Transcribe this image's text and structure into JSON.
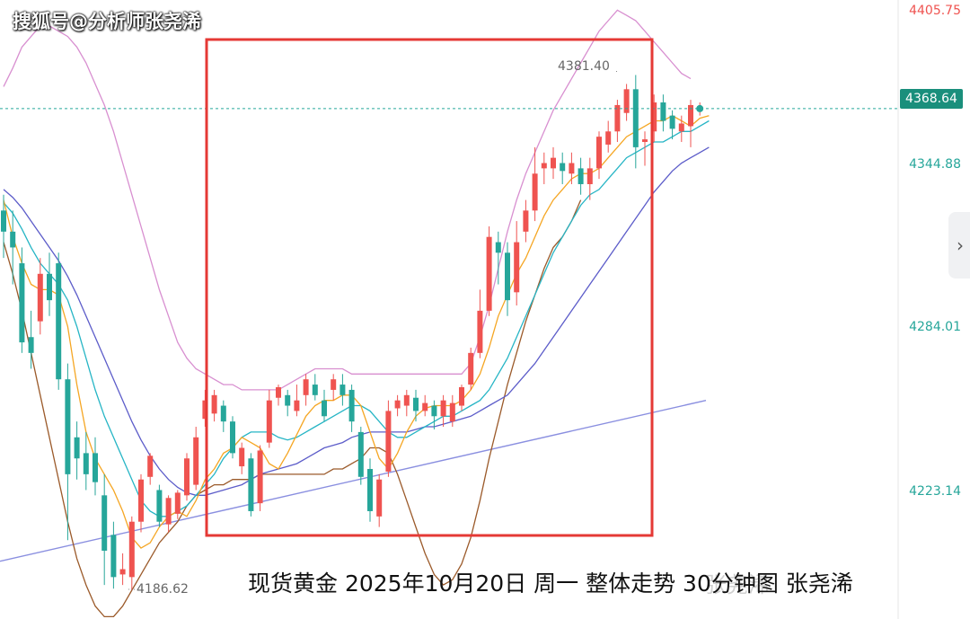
{
  "watermark": "搜狐号@分析师张尧浠",
  "caption": "现货黄金 2025年10月20日 周一 整体走势 30分钟图 张尧浠",
  "caption_ghost": "张尧浠",
  "colors": {
    "up": "#26a69a",
    "down": "#ef5350",
    "ma_fast": "#f5a623",
    "ma_mid": "#26b5c5",
    "ma_slow": "#5c5cc9",
    "boll": "#d88fd0",
    "lower_band": "#9b5a2a",
    "long_ma": "#8a8fe0",
    "box": "#e53935",
    "price_tag": "#1a8f7c"
  },
  "chart_data": {
    "type": "candlestick",
    "timeframe": "30分钟图",
    "instrument": "现货黄金",
    "y_axis": {
      "ticks": [
        "4405.75",
        "4344.88",
        "4284.01",
        "4223.14"
      ],
      "range": [
        4177,
        4410
      ]
    },
    "current_price": "4368.64",
    "annotations": {
      "high": "4381.40",
      "low": "4186.62"
    },
    "candles": [
      {
        "o": 4330,
        "c": 4322,
        "h": 4336,
        "l": 4312
      },
      {
        "o": 4322,
        "c": 4316,
        "h": 4330,
        "l": 4302
      },
      {
        "o": 4310,
        "c": 4280,
        "h": 4316,
        "l": 4276
      },
      {
        "o": 4282,
        "c": 4276,
        "h": 4292,
        "l": 4270
      },
      {
        "o": 4288,
        "c": 4306,
        "h": 4312,
        "l": 4283
      },
      {
        "o": 4306,
        "c": 4296,
        "h": 4314,
        "l": 4290
      },
      {
        "o": 4310,
        "c": 4266,
        "h": 4314,
        "l": 4262
      },
      {
        "o": 4266,
        "c": 4230,
        "h": 4272,
        "l": 4205
      },
      {
        "o": 4244,
        "c": 4236,
        "h": 4250,
        "l": 4228
      },
      {
        "o": 4238,
        "c": 4230,
        "h": 4246,
        "l": 4224
      },
      {
        "o": 4238,
        "c": 4227,
        "h": 4244,
        "l": 4222
      },
      {
        "o": 4222,
        "c": 4201,
        "h": 4230,
        "l": 4188
      },
      {
        "o": 4207,
        "c": 4191,
        "h": 4212,
        "l": 4186.62
      },
      {
        "o": 4192,
        "c": 4194,
        "h": 4200,
        "l": 4188
      },
      {
        "o": 4191,
        "c": 4212,
        "h": 4214,
        "l": 4186
      },
      {
        "o": 4212,
        "c": 4228,
        "h": 4230,
        "l": 4208
      },
      {
        "o": 4229,
        "c": 4237,
        "h": 4238,
        "l": 4226
      },
      {
        "o": 4224,
        "c": 4212,
        "h": 4226,
        "l": 4210
      },
      {
        "o": 4211,
        "c": 4221,
        "h": 4222,
        "l": 4208
      },
      {
        "o": 4215,
        "c": 4223,
        "h": 4224,
        "l": 4213
      },
      {
        "o": 4222,
        "c": 4236,
        "h": 4238,
        "l": 4220
      },
      {
        "o": 4226,
        "c": 4244,
        "h": 4248,
        "l": 4224
      },
      {
        "o": 4251,
        "c": 4258,
        "h": 4262,
        "l": 4248
      },
      {
        "o": 4253,
        "c": 4260,
        "h": 4262,
        "l": 4250
      },
      {
        "o": 4256,
        "c": 4250,
        "h": 4258,
        "l": 4246
      },
      {
        "o": 4250,
        "c": 4238,
        "h": 4252,
        "l": 4236
      },
      {
        "o": 4233,
        "c": 4240,
        "h": 4242,
        "l": 4230
      },
      {
        "o": 4236,
        "c": 4216,
        "h": 4238,
        "l": 4214
      },
      {
        "o": 4219,
        "c": 4239,
        "h": 4241,
        "l": 4216
      },
      {
        "o": 4242,
        "c": 4258,
        "h": 4262,
        "l": 4240
      },
      {
        "o": 4259,
        "c": 4263,
        "h": 4264,
        "l": 4256
      },
      {
        "o": 4260,
        "c": 4256,
        "h": 4262,
        "l": 4252
      },
      {
        "o": 4254,
        "c": 4258,
        "h": 4264,
        "l": 4252
      },
      {
        "o": 4260,
        "c": 4266,
        "h": 4268,
        "l": 4256
      },
      {
        "o": 4264,
        "c": 4260,
        "h": 4268,
        "l": 4258
      },
      {
        "o": 4258,
        "c": 4252,
        "h": 4262,
        "l": 4250
      },
      {
        "o": 4262,
        "c": 4266,
        "h": 4268,
        "l": 4258
      },
      {
        "o": 4264,
        "c": 4260,
        "h": 4268,
        "l": 4256
      },
      {
        "o": 4262,
        "c": 4250,
        "h": 4264,
        "l": 4246
      },
      {
        "o": 4246,
        "c": 4229,
        "h": 4248,
        "l": 4226
      },
      {
        "o": 4232,
        "c": 4216,
        "h": 4236,
        "l": 4212
      },
      {
        "o": 4214,
        "c": 4228,
        "h": 4230,
        "l": 4210
      },
      {
        "o": 4231,
        "c": 4254,
        "h": 4258,
        "l": 4229
      },
      {
        "o": 4255,
        "c": 4258,
        "h": 4260,
        "l": 4252
      },
      {
        "o": 4256,
        "c": 4260,
        "h": 4262,
        "l": 4252
      },
      {
        "o": 4259,
        "c": 4254,
        "h": 4262,
        "l": 4250
      },
      {
        "o": 4254,
        "c": 4257,
        "h": 4260,
        "l": 4252
      },
      {
        "o": 4256,
        "c": 4252,
        "h": 4258,
        "l": 4247
      },
      {
        "o": 4252,
        "c": 4258,
        "h": 4260,
        "l": 4248
      },
      {
        "o": 4250,
        "c": 4257,
        "h": 4260,
        "l": 4248
      },
      {
        "o": 4256,
        "c": 4263,
        "h": 4264,
        "l": 4254
      },
      {
        "o": 4264,
        "c": 4276,
        "h": 4278,
        "l": 4262
      },
      {
        "o": 4276,
        "c": 4292,
        "h": 4300,
        "l": 4274
      },
      {
        "o": 4292,
        "c": 4320,
        "h": 4324,
        "l": 4290
      },
      {
        "o": 4318,
        "c": 4314,
        "h": 4322,
        "l": 4302
      },
      {
        "o": 4314,
        "c": 4296,
        "h": 4318,
        "l": 4290
      },
      {
        "o": 4299,
        "c": 4318,
        "h": 4326,
        "l": 4294
      },
      {
        "o": 4322,
        "c": 4330,
        "h": 4334,
        "l": 4318
      },
      {
        "o": 4330,
        "c": 4344,
        "h": 4354,
        "l": 4326
      },
      {
        "o": 4346,
        "c": 4348,
        "h": 4352,
        "l": 4340
      },
      {
        "o": 4346,
        "c": 4350,
        "h": 4354,
        "l": 4342
      },
      {
        "o": 4348,
        "c": 4345,
        "h": 4352,
        "l": 4340
      },
      {
        "o": 4344,
        "c": 4348,
        "h": 4352,
        "l": 4340
      },
      {
        "o": 4346,
        "c": 4340,
        "h": 4350,
        "l": 4336
      },
      {
        "o": 4340,
        "c": 4346,
        "h": 4350,
        "l": 4334
      },
      {
        "o": 4346,
        "c": 4358,
        "h": 4360,
        "l": 4342
      },
      {
        "o": 4355,
        "c": 4360,
        "h": 4364,
        "l": 4352
      },
      {
        "o": 4360,
        "c": 4370,
        "h": 4372,
        "l": 4356
      },
      {
        "o": 4367,
        "c": 4376,
        "h": 4378,
        "l": 4364
      },
      {
        "o": 4376,
        "c": 4354,
        "h": 4381.4,
        "l": 4346
      },
      {
        "o": 4356,
        "c": 4357,
        "h": 4360,
        "l": 4347
      },
      {
        "o": 4360,
        "c": 4371,
        "h": 4374,
        "l": 4356
      },
      {
        "o": 4371,
        "c": 4364,
        "h": 4374,
        "l": 4360
      },
      {
        "o": 4366,
        "c": 4361,
        "h": 4368,
        "l": 4357
      },
      {
        "o": 4360,
        "c": 4363,
        "h": 4366,
        "l": 4356
      },
      {
        "o": 4362,
        "c": 4370,
        "h": 4372,
        "l": 4354
      },
      {
        "o": 4368,
        "c": 4368.64,
        "h": 4371,
        "l": 4366
      }
    ],
    "lines": {
      "ma_fast": [
        4334,
        4320,
        4310,
        4302,
        4300,
        4300,
        4298,
        4286,
        4264,
        4246,
        4236,
        4230,
        4224,
        4216,
        4206,
        4202,
        4204,
        4210,
        4214,
        4216,
        4214,
        4220,
        4228,
        4232,
        4238,
        4240,
        4244,
        4242,
        4240,
        4234,
        4232,
        4238,
        4245,
        4252,
        4256,
        4258,
        4258,
        4260,
        4260,
        4256,
        4246,
        4236,
        4232,
        4238,
        4246,
        4252,
        4255,
        4256,
        4256,
        4256,
        4258,
        4262,
        4268,
        4278,
        4290,
        4298,
        4306,
        4312,
        4320,
        4328,
        4334,
        4338,
        4342,
        4344,
        4344,
        4346,
        4350,
        4354,
        4358,
        4360,
        4362,
        4364,
        4364,
        4366,
        4364,
        4362,
        4365,
        4366
      ],
      "ma_mid": [
        4333,
        4329,
        4323,
        4316,
        4310,
        4306,
        4302,
        4296,
        4286,
        4274,
        4262,
        4252,
        4244,
        4236,
        4228,
        4220,
        4216,
        4214,
        4214,
        4216,
        4218,
        4222,
        4226,
        4230,
        4236,
        4240,
        4244,
        4246,
        4246,
        4246,
        4244,
        4243,
        4244,
        4246,
        4248,
        4250,
        4252,
        4254,
        4256,
        4256,
        4254,
        4250,
        4246,
        4244,
        4244,
        4246,
        4248,
        4250,
        4252,
        4252,
        4254,
        4256,
        4258,
        4262,
        4268,
        4274,
        4282,
        4290,
        4298,
        4306,
        4314,
        4320,
        4326,
        4332,
        4336,
        4338,
        4342,
        4346,
        4350,
        4352,
        4354,
        4356,
        4356,
        4358,
        4360,
        4360,
        4362,
        4364
      ],
      "ma_slow": [
        4338,
        4335,
        4331,
        4326,
        4321,
        4316,
        4311,
        4305,
        4298,
        4290,
        4282,
        4274,
        4266,
        4258,
        4250,
        4243,
        4237,
        4232,
        4228,
        4225,
        4223,
        4222,
        4222,
        4223,
        4224,
        4225,
        4226,
        4228,
        4230,
        4231,
        4232,
        4233,
        4234,
        4236,
        4238,
        4240,
        4241,
        4242,
        4244,
        4245,
        4246,
        4246,
        4246,
        4246,
        4246,
        4247,
        4248,
        4248,
        4249,
        4250,
        4251,
        4252,
        4254,
        4256,
        4258,
        4260,
        4264,
        4268,
        4272,
        4277,
        4282,
        4287,
        4292,
        4297,
        4302,
        4307,
        4312,
        4317,
        4322,
        4327,
        4332,
        4337,
        4341,
        4345,
        4348,
        4350,
        4352,
        4354
      ],
      "boll_upper": [
        4377,
        4384,
        4392,
        4396,
        4400,
        4400,
        4398,
        4396,
        4392,
        4386,
        4378,
        4370,
        4360,
        4348,
        4336,
        4324,
        4312,
        4300,
        4290,
        4280,
        4274,
        4270,
        4268,
        4266,
        4264,
        4264,
        4262,
        4262,
        4262,
        4262,
        4262,
        4264,
        4266,
        4268,
        4270,
        4270,
        4270,
        4270,
        4268,
        4268,
        4268,
        4268,
        4268,
        4268,
        4268,
        4268,
        4268,
        4268,
        4268,
        4268,
        4268,
        4272,
        4282,
        4294,
        4308,
        4322,
        4334,
        4344,
        4352,
        4360,
        4368,
        4374,
        4380,
        4386,
        4392,
        4398,
        4402,
        4406,
        4404,
        4402,
        4398,
        4394,
        4390,
        4386,
        4382,
        4380
      ],
      "boll_lower": [
        4318,
        4306,
        4292,
        4276,
        4260,
        4244,
        4228,
        4212,
        4198,
        4188,
        4180,
        4176,
        4176,
        4180,
        4186,
        4192,
        4198,
        4204,
        4208,
        4212,
        4218,
        4222,
        4224,
        4226,
        4226,
        4228,
        4228,
        4228,
        4230,
        4230,
        4230,
        4230,
        4230,
        4230,
        4230,
        4230,
        4232,
        4232,
        4234,
        4236,
        4240,
        4240,
        4238,
        4230,
        4220,
        4210,
        4200,
        4192,
        4188,
        4190,
        4196,
        4206,
        4220,
        4236,
        4250,
        4264,
        4276,
        4288,
        4298,
        4308,
        4316,
        4320,
        4326,
        4334
      ]
    }
  }
}
